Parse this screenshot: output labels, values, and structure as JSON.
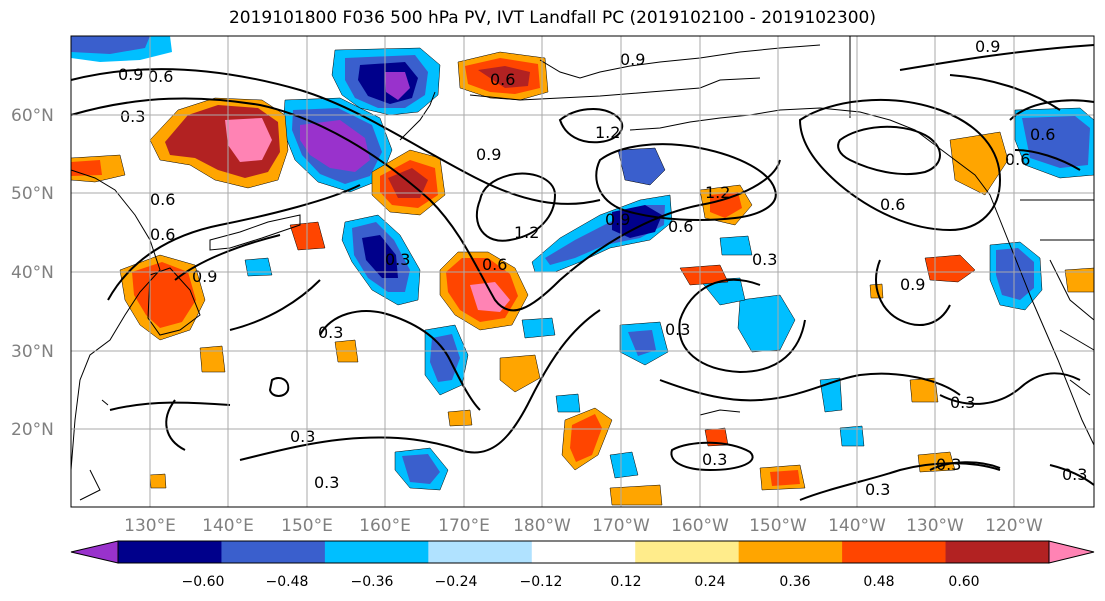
{
  "title": "2019101800 F036 500 hPa PV, IVT Landfall PC (2019102100 - 2019102300)",
  "lat_labels": [
    "60°N",
    "50°N",
    "40°N",
    "30°N",
    "20°N"
  ],
  "lon_labels": [
    "130°E",
    "140°E",
    "150°E",
    "160°E",
    "170°E",
    "180°W",
    "170°W",
    "160°W",
    "150°W",
    "140°W",
    "130°W",
    "120°W"
  ],
  "colorbar": {
    "colors": [
      "#9932CC",
      "#00008B",
      "#3A5FCD",
      "#00BFFF",
      "#B0E2FF",
      "#FFFFFF",
      "#FFEC8B",
      "#FFA500",
      "#FF4500",
      "#B22222",
      "#FF83B4"
    ],
    "labels": [
      "−0.60",
      "−0.48",
      "−0.36",
      "−0.24",
      "−0.12",
      "0.12",
      "0.24",
      "0.36",
      "0.48",
      "0.60"
    ]
  },
  "contour_labels": [
    "0.9",
    "0.6",
    "0.3",
    "0.6",
    "0.6",
    "0.9",
    "0.3",
    "0.3",
    "0.6",
    "1.2",
    "0.9",
    "1.2",
    "0.9",
    "0.6",
    "1.2",
    "0.3",
    "0.3",
    "0.3",
    "0.3",
    "0.3",
    "0.3",
    "0.3",
    "0.3",
    "0.9",
    "0.6",
    "0.6",
    "0.3",
    "0.9",
    "0.6",
    "0.9",
    "0.6"
  ]
}
